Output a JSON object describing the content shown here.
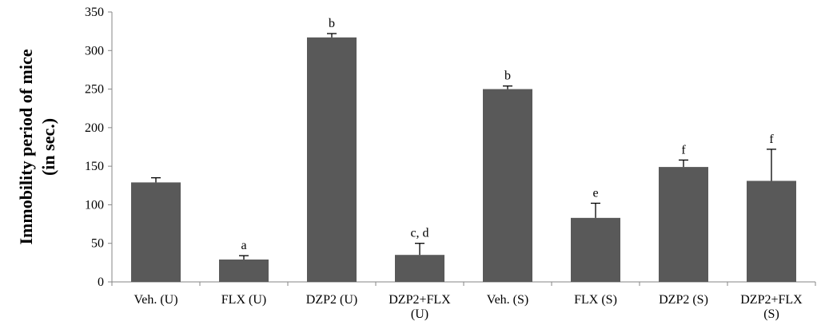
{
  "chart_data": {
    "type": "bar",
    "title": "",
    "xlabel": "",
    "ylabel_lines": [
      "Immobility period of mice",
      "(in sec.)"
    ],
    "ylim": [
      0,
      350
    ],
    "yticks": [
      "0",
      "50",
      "100",
      "150",
      "200",
      "250",
      "300",
      "350"
    ],
    "grid": false,
    "legend": "none",
    "bar_color": "#595959",
    "categories": [
      [
        "Veh. (U)"
      ],
      [
        "FLX (U)"
      ],
      [
        "DZP2  (U)"
      ],
      [
        "DZP2+FLX",
        "(U)"
      ],
      [
        "Veh. (S)"
      ],
      [
        "FLX (S)"
      ],
      [
        "DZP2 (S)"
      ],
      [
        "DZP2+FLX",
        "(S)"
      ]
    ],
    "values": [
      129,
      29,
      317,
      35,
      250,
      83,
      149,
      131
    ],
    "errors": [
      6,
      5,
      5,
      15,
      4,
      19,
      9,
      41
    ],
    "significance_labels": [
      "",
      "a",
      "b",
      "c, d",
      "b",
      "e",
      "f",
      "f"
    ]
  }
}
